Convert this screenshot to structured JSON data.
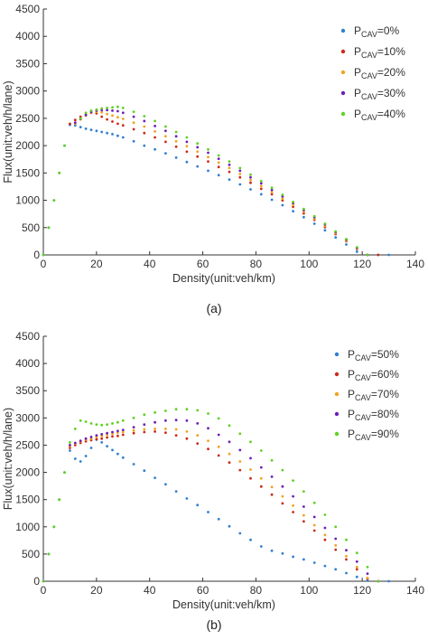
{
  "colors": {
    "series": [
      "#2f7fd3",
      "#cc2a18",
      "#f2a21e",
      "#6c1fb8",
      "#5fd11f"
    ],
    "axis": "#333333"
  },
  "chart_data": [
    {
      "type": "scatter",
      "panel_label": "(a)",
      "xlabel": "Density(unit:veh/km)",
      "ylabel": "Flux(unit:veh/h/lane)",
      "xlim": [
        0,
        140
      ],
      "ylim": [
        0,
        4500
      ],
      "xticks": [
        "0",
        "20",
        "40",
        "60",
        "80",
        "100",
        "120",
        "140"
      ],
      "yticks": [
        "0",
        "500",
        "1000",
        "1500",
        "2000",
        "2500",
        "3000",
        "3500",
        "4000",
        "4500"
      ],
      "grid": false,
      "legend_position": "top-right",
      "series": [
        {
          "legend_base": "P",
          "legend_sub": "CAV",
          "legend_suffix": "=0%",
          "x": [
            0,
            2,
            4,
            6,
            8,
            10,
            12,
            14,
            16,
            18,
            20,
            22,
            24,
            26,
            28,
            30,
            34,
            38,
            42,
            46,
            50,
            54,
            58,
            62,
            66,
            70,
            74,
            78,
            82,
            86,
            90,
            94,
            98,
            102,
            106,
            110,
            114,
            118,
            122,
            126,
            130
          ],
          "y": [
            0,
            500,
            1000,
            1500,
            2000,
            2380,
            2370,
            2340,
            2310,
            2290,
            2270,
            2250,
            2230,
            2210,
            2180,
            2150,
            2080,
            2000,
            1930,
            1860,
            1780,
            1700,
            1620,
            1540,
            1460,
            1380,
            1290,
            1200,
            1110,
            1010,
            910,
            800,
            690,
            570,
            450,
            320,
            190,
            60,
            0,
            0,
            0
          ]
        },
        {
          "legend_base": "P",
          "legend_sub": "CAV",
          "legend_suffix": "=10%",
          "x": [
            10,
            12,
            14,
            16,
            18,
            20,
            22,
            24,
            26,
            28,
            30,
            34,
            38,
            42,
            46,
            50,
            54,
            58,
            62,
            66,
            70,
            74,
            78,
            82,
            86,
            90,
            94,
            98,
            102,
            106,
            110,
            114,
            118,
            122,
            126
          ],
          "y": [
            2400,
            2470,
            2530,
            2570,
            2600,
            2590,
            2530,
            2480,
            2440,
            2400,
            2370,
            2300,
            2230,
            2150,
            2070,
            1980,
            1890,
            1800,
            1710,
            1610,
            1520,
            1420,
            1320,
            1210,
            1110,
            1000,
            880,
            760,
            640,
            510,
            380,
            250,
            110,
            0,
            0
          ]
        },
        {
          "legend_base": "P",
          "legend_sub": "CAV",
          "legend_suffix": "=20%",
          "x": [
            12,
            14,
            16,
            18,
            20,
            22,
            24,
            26,
            28,
            30,
            34,
            38,
            42,
            46,
            50,
            54,
            58,
            62,
            66,
            70,
            74,
            78,
            82,
            86,
            90,
            94,
            98,
            102,
            106,
            110,
            114,
            118,
            122
          ],
          "y": [
            2400,
            2480,
            2550,
            2610,
            2620,
            2610,
            2580,
            2550,
            2520,
            2490,
            2420,
            2350,
            2260,
            2170,
            2080,
            1990,
            1890,
            1790,
            1690,
            1590,
            1480,
            1370,
            1260,
            1150,
            1030,
            910,
            790,
            660,
            530,
            400,
            260,
            120,
            0
          ]
        },
        {
          "legend_base": "P",
          "legend_sub": "CAV",
          "legend_suffix": "=30%",
          "x": [
            12,
            14,
            16,
            18,
            20,
            22,
            24,
            26,
            28,
            30,
            34,
            38,
            42,
            46,
            50,
            54,
            58,
            62,
            66,
            70,
            74,
            78,
            82,
            86,
            90,
            94,
            98,
            102,
            106,
            110,
            114,
            118,
            122
          ],
          "y": [
            2420,
            2490,
            2560,
            2620,
            2640,
            2650,
            2650,
            2640,
            2630,
            2600,
            2530,
            2450,
            2360,
            2270,
            2170,
            2070,
            1970,
            1870,
            1760,
            1650,
            1540,
            1420,
            1310,
            1190,
            1070,
            950,
            820,
            690,
            560,
            420,
            280,
            130,
            0
          ]
        },
        {
          "legend_base": "P",
          "legend_sub": "CAV",
          "legend_suffix": "=40%",
          "x": [
            0,
            2,
            4,
            6,
            8,
            14,
            16,
            18,
            20,
            22,
            24,
            26,
            28,
            30,
            34,
            38,
            42,
            46,
            50,
            54,
            58,
            62,
            66,
            70,
            74,
            78,
            82,
            86,
            90,
            94,
            98,
            102,
            106,
            110,
            114,
            118,
            122
          ],
          "y": [
            0,
            500,
            1000,
            1500,
            2000,
            2500,
            2600,
            2640,
            2660,
            2680,
            2690,
            2700,
            2710,
            2690,
            2620,
            2540,
            2450,
            2350,
            2250,
            2150,
            2040,
            1930,
            1820,
            1710,
            1590,
            1470,
            1350,
            1230,
            1100,
            970,
            840,
            710,
            570,
            430,
            290,
            140,
            0
          ]
        }
      ]
    },
    {
      "type": "scatter",
      "panel_label": "(b)",
      "xlabel": "Density(unit:veh/km)",
      "ylabel": "Flux(unit:veh/h/lane)",
      "xlim": [
        0,
        140
      ],
      "ylim": [
        0,
        4500
      ],
      "xticks": [
        "0",
        "20",
        "40",
        "60",
        "80",
        "100",
        "120",
        "140"
      ],
      "yticks": [
        "0",
        "500",
        "1000",
        "1500",
        "2000",
        "2500",
        "3000",
        "3500",
        "4000",
        "4500"
      ],
      "grid": false,
      "legend_position": "top-right",
      "series": [
        {
          "legend_base": "P",
          "legend_sub": "CAV",
          "legend_suffix": "=50%",
          "x": [
            0,
            2,
            4,
            6,
            8,
            10,
            12,
            14,
            16,
            18,
            20,
            22,
            24,
            26,
            28,
            30,
            34,
            38,
            42,
            46,
            50,
            54,
            58,
            62,
            66,
            70,
            74,
            78,
            82,
            86,
            90,
            94,
            98,
            102,
            106,
            110,
            114,
            118,
            122,
            126,
            130
          ],
          "y": [
            0,
            500,
            1000,
            1500,
            2000,
            2400,
            2250,
            2200,
            2300,
            2450,
            2600,
            2550,
            2480,
            2410,
            2340,
            2270,
            2150,
            2030,
            1900,
            1780,
            1650,
            1520,
            1400,
            1270,
            1140,
            1010,
            880,
            760,
            640,
            560,
            510,
            450,
            400,
            340,
            280,
            220,
            150,
            80,
            20,
            0,
            0
          ]
        },
        {
          "legend_base": "P",
          "legend_sub": "CAV",
          "legend_suffix": "=60%",
          "x": [
            10,
            12,
            14,
            16,
            18,
            20,
            22,
            24,
            26,
            28,
            30,
            34,
            38,
            42,
            46,
            50,
            54,
            58,
            62,
            66,
            70,
            74,
            78,
            82,
            86,
            90,
            94,
            98,
            102,
            106,
            110,
            114,
            118,
            122,
            126
          ],
          "y": [
            2450,
            2500,
            2540,
            2570,
            2590,
            2610,
            2620,
            2640,
            2660,
            2670,
            2690,
            2720,
            2740,
            2750,
            2730,
            2680,
            2620,
            2530,
            2430,
            2310,
            2180,
            2040,
            1890,
            1740,
            1590,
            1430,
            1270,
            1100,
            930,
            760,
            580,
            400,
            220,
            50,
            0
          ]
        },
        {
          "legend_base": "P",
          "legend_sub": "CAV",
          "legend_suffix": "=70%",
          "x": [
            10,
            12,
            14,
            16,
            18,
            20,
            22,
            24,
            26,
            28,
            30,
            34,
            38,
            42,
            46,
            50,
            54,
            58,
            62,
            66,
            70,
            74,
            78,
            82,
            86,
            90,
            94,
            98,
            102,
            106,
            110,
            114,
            118,
            122
          ],
          "y": [
            2480,
            2530,
            2570,
            2600,
            2620,
            2650,
            2670,
            2690,
            2710,
            2730,
            2740,
            2770,
            2790,
            2800,
            2800,
            2790,
            2750,
            2680,
            2580,
            2470,
            2340,
            2200,
            2050,
            1890,
            1730,
            1560,
            1390,
            1210,
            1030,
            850,
            660,
            460,
            260,
            60
          ]
        },
        {
          "legend_base": "P",
          "legend_sub": "CAV",
          "legend_suffix": "=80%",
          "x": [
            10,
            12,
            14,
            16,
            18,
            20,
            22,
            24,
            26,
            28,
            30,
            34,
            38,
            42,
            46,
            50,
            54,
            58,
            62,
            66,
            70,
            74,
            78,
            82,
            86,
            90,
            94,
            98,
            102,
            106,
            110,
            114,
            118,
            122
          ],
          "y": [
            2500,
            2540,
            2580,
            2620,
            2650,
            2680,
            2700,
            2720,
            2740,
            2760,
            2780,
            2830,
            2880,
            2920,
            2950,
            2960,
            2950,
            2900,
            2810,
            2690,
            2560,
            2410,
            2260,
            2090,
            1920,
            1740,
            1560,
            1370,
            1180,
            980,
            780,
            570,
            360,
            140
          ]
        },
        {
          "legend_base": "P",
          "legend_sub": "CAV",
          "legend_suffix": "=90%",
          "x": [
            0,
            2,
            4,
            6,
            8,
            10,
            12,
            14,
            16,
            18,
            20,
            22,
            24,
            26,
            28,
            30,
            34,
            38,
            42,
            46,
            50,
            54,
            58,
            62,
            66,
            70,
            74,
            78,
            82,
            86,
            90,
            94,
            98,
            102,
            106,
            110,
            114,
            118,
            122,
            126
          ],
          "y": [
            0,
            500,
            1000,
            1500,
            2000,
            2550,
            2800,
            2950,
            2930,
            2900,
            2880,
            2870,
            2880,
            2900,
            2920,
            2950,
            3000,
            3060,
            3100,
            3130,
            3160,
            3160,
            3140,
            3080,
            2990,
            2860,
            2710,
            2560,
            2400,
            2220,
            2040,
            1850,
            1650,
            1440,
            1220,
            1000,
            760,
            520,
            260,
            0
          ]
        }
      ]
    }
  ]
}
